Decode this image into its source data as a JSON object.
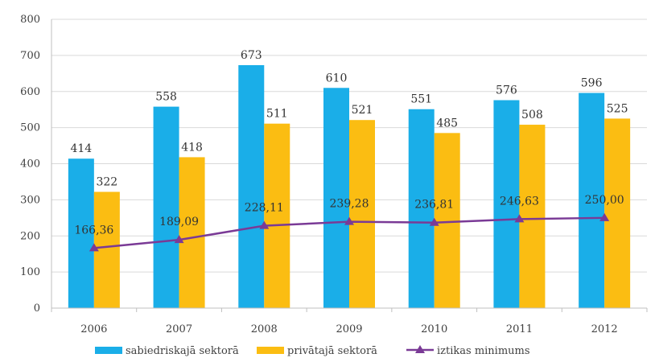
{
  "chart_data": {
    "type": "bar",
    "categories": [
      "2006",
      "2007",
      "2008",
      "2009",
      "2010",
      "2011",
      "2012"
    ],
    "series": [
      {
        "name": "sabiedriskajā sektorā",
        "kind": "bar",
        "color": "#1aaee8",
        "values": [
          414,
          558,
          673,
          610,
          551,
          576,
          596
        ],
        "labels": [
          "414",
          "558",
          "673",
          "610",
          "551",
          "576",
          "596"
        ]
      },
      {
        "name": "privātajā sektorā",
        "kind": "bar",
        "color": "#fbbd12",
        "values": [
          322,
          418,
          511,
          521,
          485,
          508,
          525
        ],
        "labels": [
          "322",
          "418",
          "511",
          "521",
          "485",
          "508",
          "525"
        ]
      },
      {
        "name": "iztikas minimums",
        "kind": "line",
        "color": "#7a3a96",
        "values": [
          166.36,
          189.09,
          228.11,
          239.28,
          236.81,
          246.63,
          250.0
        ],
        "labels": [
          "166,36",
          "189,09",
          "228,11",
          "239,28",
          "236,81",
          "246,63",
          "250,00"
        ]
      }
    ],
    "yticks": [
      "0",
      "100",
      "200",
      "300",
      "400",
      "500",
      "600",
      "700",
      "800"
    ],
    "ylim": [
      0,
      800
    ],
    "grid": true,
    "legend": "bottom"
  }
}
